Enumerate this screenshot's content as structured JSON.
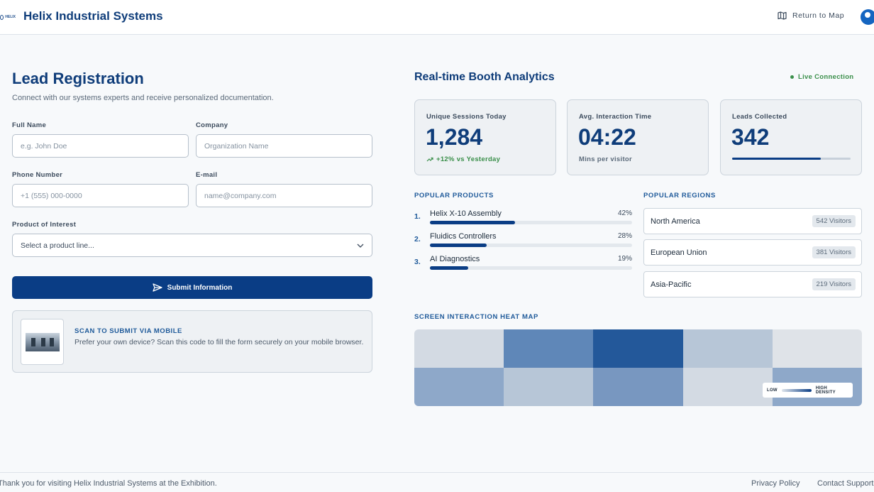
{
  "header": {
    "logo_text": "HELIX",
    "brand": "Helix Industrial Systems",
    "return_label": "Return to Map"
  },
  "form": {
    "title": "Lead Registration",
    "subtitle": "Connect with our systems experts and receive personalized documentation.",
    "full_name": {
      "label": "Full Name",
      "placeholder": "e.g. John Doe",
      "value": ""
    },
    "company": {
      "label": "Company",
      "placeholder": "Organization Name",
      "value": ""
    },
    "phone": {
      "label": "Phone Number",
      "placeholder": "+1 (555) 000-0000",
      "value": ""
    },
    "email": {
      "label": "E-mail",
      "placeholder": "name@company.com",
      "value": ""
    },
    "product": {
      "label": "Product of Interest",
      "selected": "Select a product line..."
    },
    "submit_label": "Submit Information",
    "scan": {
      "title": "SCAN TO SUBMIT VIA MOBILE",
      "text": "Prefer your own device? Scan this code to fill the form securely on your mobile browser."
    }
  },
  "analytics": {
    "title": "Real-time Booth Analytics",
    "status": "Live Connection",
    "cards": [
      {
        "label": "Unique Sessions Today",
        "value": "1,284",
        "trend": "+12% vs Yesterday"
      },
      {
        "label": "Avg. Interaction Time",
        "value": "04:22",
        "foot": "Mins per visitor"
      },
      {
        "label": "Leads Collected",
        "value": "342",
        "progress": 0.75
      }
    ],
    "products_title": "POPULAR PRODUCTS",
    "products": [
      {
        "rank": "1.",
        "name": "Helix X-10 Assembly",
        "pct": "42%",
        "share": 0.42
      },
      {
        "rank": "2.",
        "name": "Fluidics Controllers",
        "pct": "28%",
        "share": 0.28
      },
      {
        "rank": "3.",
        "name": "AI Diagnostics",
        "pct": "19%",
        "share": 0.19
      }
    ],
    "regions_title": "POPULAR REGIONS",
    "regions": [
      {
        "name": "North America",
        "badge": "542 Visitors"
      },
      {
        "name": "European Union",
        "badge": "381 Visitors"
      },
      {
        "name": "Asia-Pacific",
        "badge": "219 Visitors"
      }
    ],
    "heatmap_title": "SCREEN INTERACTION HEAT MAP",
    "heatmap_cells": [
      "#d3dae3",
      "#5f87b8",
      "#23589a",
      "#b7c6d7",
      "#dfe3e8",
      "#8ea8c9",
      "#b7c6d7",
      "#7897c0",
      "#d3dae3",
      "#8ea8c9"
    ],
    "legend_low": "LOW",
    "legend_high": "HIGH DENSITY"
  },
  "footer": {
    "message": "Thank you for visiting Helix Industrial Systems at the Exhibition.",
    "privacy": "Privacy Policy",
    "contact": "Contact Support"
  },
  "colors": {
    "primary": "#0a3d85",
    "accent": "#1f5a9a",
    "live_green": "#3a8f4a"
  }
}
